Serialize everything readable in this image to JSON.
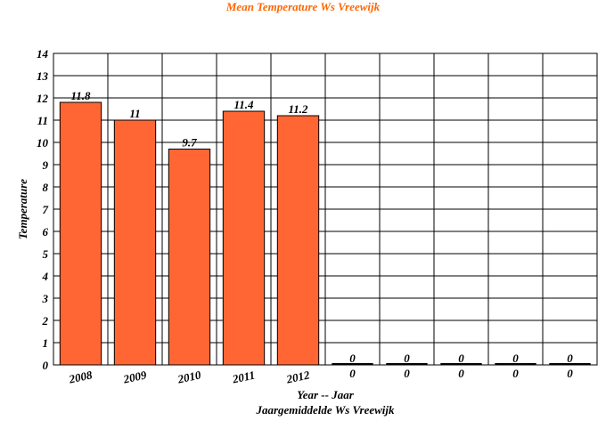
{
  "chart_data": {
    "type": "bar",
    "title": "Mean Temperature Ws Vreewijk",
    "ylabel": "Temperature",
    "xlabel": "Year -- Jaar",
    "xlabel2": "Jaargemiddelde Ws Vreewijk",
    "ylim": [
      0,
      14
    ],
    "yticks": [
      0,
      1,
      2,
      3,
      4,
      5,
      6,
      7,
      8,
      9,
      10,
      11,
      12,
      13,
      14
    ],
    "categories": [
      "2008",
      "2009",
      "2010",
      "2011",
      "2012",
      "0",
      "0",
      "0",
      "0",
      "0"
    ],
    "values": [
      11.8,
      11,
      9.7,
      11.4,
      11.2,
      0,
      0,
      0,
      0,
      0
    ],
    "data_labels": [
      "11.8",
      "11",
      "9.7",
      "11.4",
      "11.2",
      "0",
      "0",
      "0",
      "0",
      "0"
    ],
    "bar_color": "#ff6633",
    "title_color": "#ff6600",
    "grid": true
  }
}
